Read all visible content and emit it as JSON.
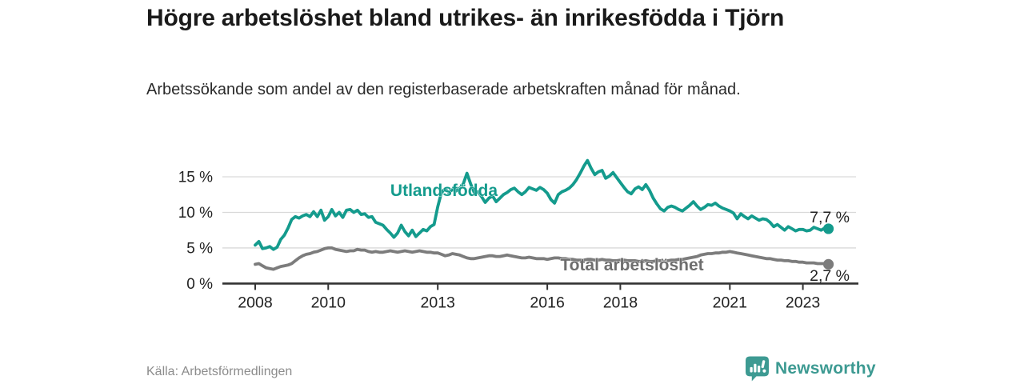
{
  "header": {
    "title": "Högre arbetslöshet bland utrikes- än inrikesfödda i Tjörn",
    "subtitle": "Arbetssökande som andel av den registerbaserade arbetskraften månad för månad."
  },
  "footer": {
    "source": "Källa: Arbetsförmedlingen",
    "brand": "Newsworthy"
  },
  "colors": {
    "accent_teal": "#149b8d",
    "line_gray": "#7c7c7c",
    "series_label_gray": "#6e6e6e",
    "grid": "#d9d9d9",
    "axis": "#333333",
    "tick_text": "#222222",
    "value_text": "#222222",
    "brand_teal": "#3d9a92"
  },
  "chart_data": {
    "type": "line",
    "title": "",
    "xlabel": "",
    "ylabel": "",
    "x_start": 2008.0,
    "x_step": 0.1,
    "x_end": 2023.7,
    "ylim": [
      0,
      17.8
    ],
    "grid": "horizontal",
    "x_ticks": [
      2008,
      2010,
      2013,
      2016,
      2018,
      2021,
      2023
    ],
    "x_tick_labels": [
      "2008",
      "2010",
      "2013",
      "2016",
      "2018",
      "2021",
      "2023"
    ],
    "y_ticks": [
      0,
      5,
      10,
      15
    ],
    "y_tick_labels": [
      "0 %",
      "5 %",
      "10 %",
      "15 %"
    ],
    "series": [
      {
        "name": "Utlandsfödda",
        "end_label": "7,7 %",
        "last_value": 7.7,
        "values": [
          5.4,
          5.9,
          4.9,
          5.0,
          5.2,
          4.8,
          5.1,
          6.2,
          6.8,
          7.8,
          9.0,
          9.4,
          9.2,
          9.5,
          9.7,
          9.4,
          10.1,
          9.4,
          10.3,
          8.9,
          9.4,
          10.4,
          9.5,
          10.0,
          9.3,
          10.3,
          10.4,
          10.0,
          10.3,
          9.7,
          9.8,
          9.3,
          9.4,
          8.6,
          8.4,
          8.2,
          7.6,
          7.1,
          6.5,
          7.1,
          8.2,
          7.3,
          6.7,
          7.5,
          6.6,
          7.1,
          7.6,
          7.4,
          8.0,
          8.3,
          10.8,
          12.8,
          13.3,
          12.8,
          13.2,
          13.0,
          13.4,
          14.0,
          15.5,
          14.0,
          12.8,
          12.9,
          12.2,
          11.4,
          12.0,
          12.3,
          11.5,
          12.0,
          12.5,
          12.8,
          13.2,
          13.4,
          12.9,
          12.5,
          12.9,
          13.5,
          13.3,
          13.1,
          13.5,
          13.2,
          12.7,
          11.8,
          11.3,
          12.5,
          12.9,
          13.1,
          13.4,
          13.9,
          14.6,
          15.5,
          16.5,
          17.3,
          16.2,
          15.3,
          15.7,
          15.9,
          14.8,
          15.1,
          15.6,
          14.9,
          14.2,
          13.5,
          12.9,
          12.6,
          13.3,
          13.6,
          13.2,
          13.9,
          13.1,
          12.0,
          11.2,
          10.5,
          10.2,
          10.7,
          10.9,
          10.7,
          10.4,
          10.2,
          10.6,
          11.0,
          11.5,
          10.9,
          10.4,
          10.7,
          11.1,
          11.0,
          11.3,
          10.9,
          10.6,
          10.4,
          10.2,
          9.9,
          9.1,
          9.8,
          9.4,
          9.1,
          9.5,
          9.2,
          8.9,
          9.1,
          9.0,
          8.6,
          8.0,
          8.3,
          7.9,
          7.5,
          8.0,
          7.7,
          7.4,
          7.6,
          7.6,
          7.4,
          7.5,
          7.9,
          7.7,
          7.5,
          7.8,
          7.7
        ]
      },
      {
        "name": "Total arbetslöshet",
        "end_label": "2,7 %",
        "last_value": 2.7,
        "values": [
          2.7,
          2.8,
          2.5,
          2.2,
          2.1,
          2.0,
          2.2,
          2.4,
          2.5,
          2.6,
          2.8,
          3.2,
          3.6,
          3.9,
          4.1,
          4.2,
          4.4,
          4.5,
          4.7,
          4.9,
          5.0,
          5.0,
          4.8,
          4.7,
          4.6,
          4.5,
          4.6,
          4.6,
          4.8,
          4.7,
          4.7,
          4.5,
          4.4,
          4.5,
          4.4,
          4.4,
          4.5,
          4.6,
          4.5,
          4.4,
          4.5,
          4.6,
          4.5,
          4.4,
          4.5,
          4.6,
          4.5,
          4.4,
          4.4,
          4.3,
          4.3,
          4.1,
          3.9,
          4.0,
          4.2,
          4.1,
          4.0,
          3.8,
          3.6,
          3.5,
          3.5,
          3.6,
          3.7,
          3.8,
          3.9,
          3.9,
          3.8,
          3.8,
          3.9,
          4.0,
          3.9,
          3.8,
          3.7,
          3.6,
          3.6,
          3.7,
          3.6,
          3.5,
          3.5,
          3.5,
          3.4,
          3.5,
          3.6,
          3.6,
          3.5,
          3.5,
          3.4,
          3.4,
          3.3,
          3.3,
          3.3,
          3.4,
          3.4,
          3.3,
          3.3,
          3.4,
          3.3,
          3.3,
          3.2,
          3.2,
          3.3,
          3.3,
          3.2,
          3.2,
          3.2,
          3.1,
          3.1,
          3.2,
          3.1,
          3.1,
          3.2,
          3.2,
          3.1,
          3.2,
          3.3,
          3.3,
          3.4,
          3.4,
          3.5,
          3.6,
          3.7,
          3.8,
          4.0,
          4.1,
          4.2,
          4.2,
          4.3,
          4.3,
          4.4,
          4.4,
          4.5,
          4.4,
          4.3,
          4.2,
          4.1,
          4.0,
          3.9,
          3.8,
          3.7,
          3.6,
          3.5,
          3.5,
          3.4,
          3.3,
          3.3,
          3.2,
          3.2,
          3.1,
          3.1,
          3.0,
          3.0,
          2.9,
          2.9,
          2.9,
          2.8,
          2.8,
          2.8,
          2.7
        ]
      }
    ]
  }
}
